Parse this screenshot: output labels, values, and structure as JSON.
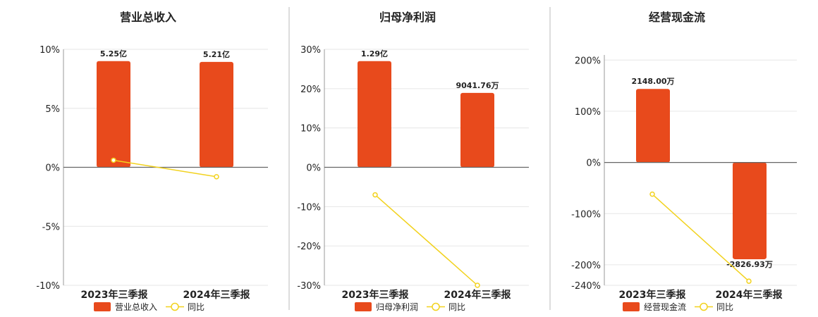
{
  "chart_data": [
    {
      "type": "bar",
      "title": "营业总收入",
      "categories": [
        "2023年三季报",
        "2024年三季报"
      ],
      "bar_values": [
        5.25,
        5.21
      ],
      "bar_labels": [
        "5.25亿",
        "5.21亿"
      ],
      "line_values": [
        0.6,
        -0.8
      ],
      "y_ticks": [
        "10%",
        "5%",
        "0%",
        "-5%",
        "-10%"
      ],
      "ylim": [
        -10,
        10
      ],
      "legend": [
        {
          "name": "营业总收入"
        },
        {
          "name": "同比"
        }
      ],
      "bar_color": "#E84A1C",
      "line_color": "#F2D21E"
    },
    {
      "type": "bar",
      "title": "归母净利润",
      "categories": [
        "2023年三季报",
        "2024年三季报"
      ],
      "bar_values": [
        1.29,
        0.904176
      ],
      "bar_labels": [
        "1.29亿",
        "9041.76万"
      ],
      "line_values": [
        -7,
        -30
      ],
      "y_ticks": [
        "30%",
        "20%",
        "10%",
        "0%",
        "-10%",
        "-20%",
        "-30%"
      ],
      "ylim": [
        -30,
        30
      ],
      "legend": [
        {
          "name": "归母净利润"
        },
        {
          "name": "同比"
        }
      ],
      "bar_color": "#E84A1C",
      "line_color": "#F2D21E"
    },
    {
      "type": "bar",
      "title": "经营现金流",
      "categories": [
        "2023年三季报",
        "2024年三季报"
      ],
      "bar_values": [
        2148.0,
        -2826.93
      ],
      "bar_labels": [
        "2148.00万",
        "-2826.93万"
      ],
      "line_values": [
        -62,
        -232
      ],
      "y_ticks": [
        "200%",
        "100%",
        "0%",
        "-100%",
        "-200%",
        "-240%"
      ],
      "ylim": [
        -240,
        210
      ],
      "legend": [
        {
          "name": "经营现金流"
        },
        {
          "name": "同比"
        }
      ],
      "bar_color": "#E84A1C",
      "line_color": "#F2D21E"
    }
  ]
}
